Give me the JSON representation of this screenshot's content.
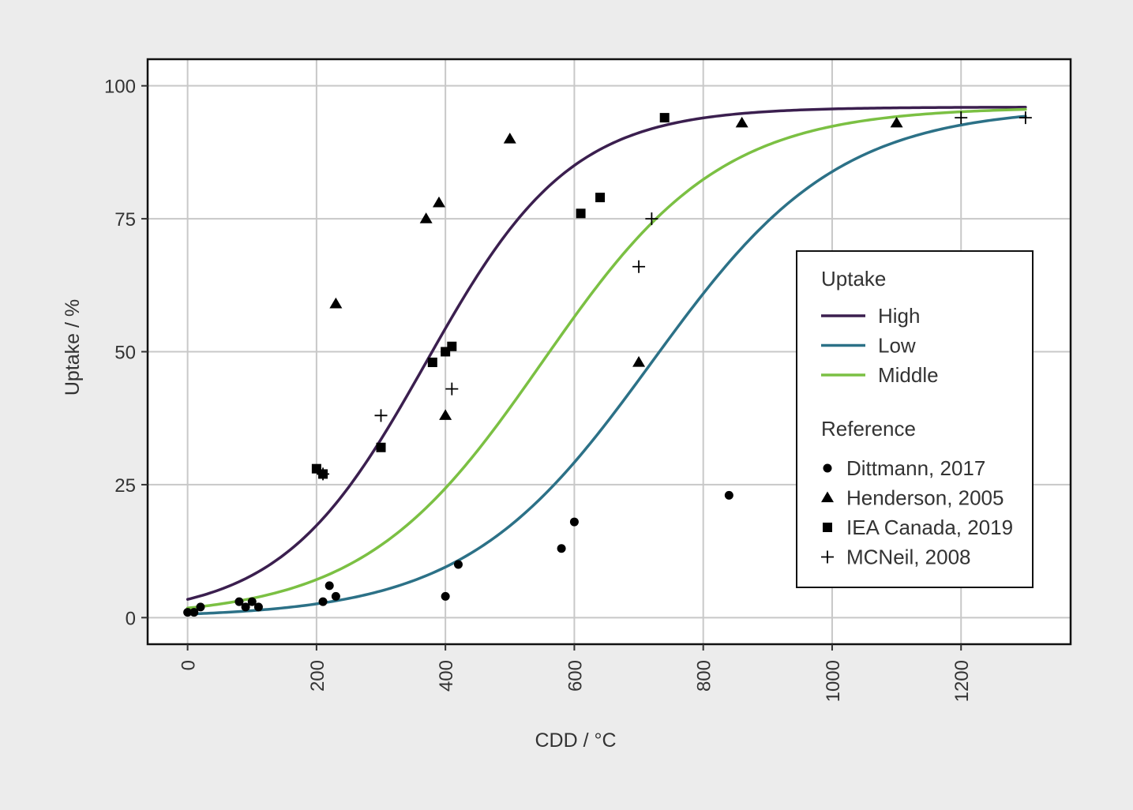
{
  "chart_data": {
    "type": "scatter",
    "xlabel": "CDD / °C",
    "ylabel": "Uptake / %",
    "xlim": [
      -62,
      1370
    ],
    "ylim": [
      -5,
      105
    ],
    "x_ticks": [
      "0",
      "200",
      "400",
      "600",
      "800",
      "1000",
      "1200"
    ],
    "y_ticks": [
      "0",
      "25",
      "50",
      "75",
      "100"
    ],
    "grid": true,
    "legend_position": "right",
    "curve_legend": {
      "title": "Uptake",
      "curves": [
        {
          "name": "High",
          "color": "#3b1f4f",
          "params": {
            "L": 96,
            "k": 0.0089,
            "x0": 370
          },
          "x_range": [
            0,
            1300
          ]
        },
        {
          "name": "Low",
          "color": "#2c7187",
          "params": {
            "L": 96,
            "k": 0.0069,
            "x0": 720
          },
          "x_range": [
            0,
            1300
          ]
        },
        {
          "name": "Middle",
          "color": "#7bc043",
          "params": {
            "L": 96,
            "k": 0.0072,
            "x0": 550
          },
          "x_range": [
            0,
            1300
          ]
        }
      ]
    },
    "marker_legend": {
      "title": "Reference",
      "series": [
        {
          "name": "Dittmann, 2017",
          "marker": "circle",
          "points": [
            {
              "x": 0,
              "y": 1
            },
            {
              "x": 10,
              "y": 1
            },
            {
              "x": 20,
              "y": 2
            },
            {
              "x": 80,
              "y": 3
            },
            {
              "x": 90,
              "y": 2
            },
            {
              "x": 100,
              "y": 3
            },
            {
              "x": 110,
              "y": 2
            },
            {
              "x": 210,
              "y": 3
            },
            {
              "x": 220,
              "y": 6
            },
            {
              "x": 230,
              "y": 4
            },
            {
              "x": 400,
              "y": 4
            },
            {
              "x": 420,
              "y": 10
            },
            {
              "x": 580,
              "y": 13
            },
            {
              "x": 600,
              "y": 18
            },
            {
              "x": 840,
              "y": 23
            }
          ]
        },
        {
          "name": "Henderson, 2005",
          "marker": "triangle",
          "points": [
            {
              "x": 230,
              "y": 59
            },
            {
              "x": 370,
              "y": 75
            },
            {
              "x": 390,
              "y": 78
            },
            {
              "x": 400,
              "y": 38
            },
            {
              "x": 500,
              "y": 90
            },
            {
              "x": 700,
              "y": 48
            },
            {
              "x": 860,
              "y": 93
            },
            {
              "x": 1100,
              "y": 93
            }
          ]
        },
        {
          "name": "IEA Canada, 2019",
          "marker": "square",
          "points": [
            {
              "x": 200,
              "y": 28
            },
            {
              "x": 210,
              "y": 27
            },
            {
              "x": 300,
              "y": 32
            },
            {
              "x": 380,
              "y": 48
            },
            {
              "x": 400,
              "y": 50
            },
            {
              "x": 410,
              "y": 51
            },
            {
              "x": 610,
              "y": 76
            },
            {
              "x": 640,
              "y": 79
            },
            {
              "x": 740,
              "y": 94
            }
          ]
        },
        {
          "name": "MCNeil, 2008",
          "marker": "plus",
          "points": [
            {
              "x": 210,
              "y": 27
            },
            {
              "x": 300,
              "y": 38
            },
            {
              "x": 410,
              "y": 43
            },
            {
              "x": 700,
              "y": 66
            },
            {
              "x": 720,
              "y": 75
            },
            {
              "x": 1200,
              "y": 94
            },
            {
              "x": 1300,
              "y": 94
            }
          ]
        }
      ]
    }
  }
}
